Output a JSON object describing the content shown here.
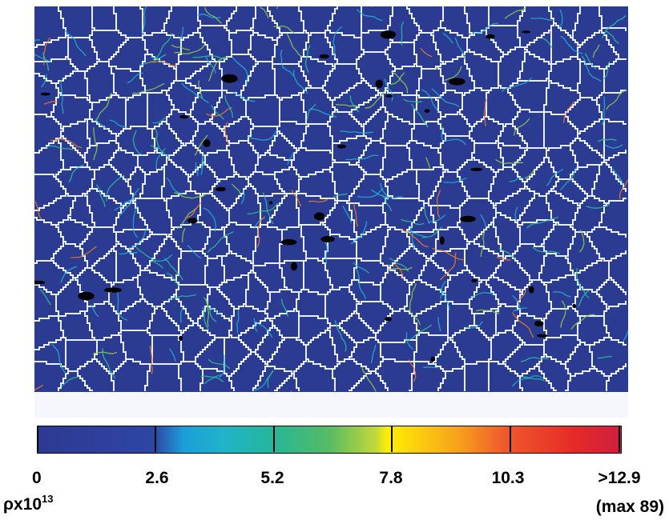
{
  "colorbar": {
    "tick_labels": [
      "0",
      "2.6",
      "5.2",
      "7.8",
      "10.3",
      ">12.9"
    ],
    "tick_values": [
      0,
      2.6,
      5.2,
      7.8,
      10.3,
      12.9
    ],
    "unit_base": "ρx10",
    "unit_exponent": "13",
    "max_note": "(max 89)",
    "colors": [
      "#2e3991",
      "#1c9ed8",
      "#25b69a",
      "#ffef00",
      "#ef5a2d",
      "#cf1f3f"
    ]
  },
  "map": {
    "background_color": "#2b3b92",
    "boundary_color": "#e8eef8",
    "void_color": "#000000"
  }
}
